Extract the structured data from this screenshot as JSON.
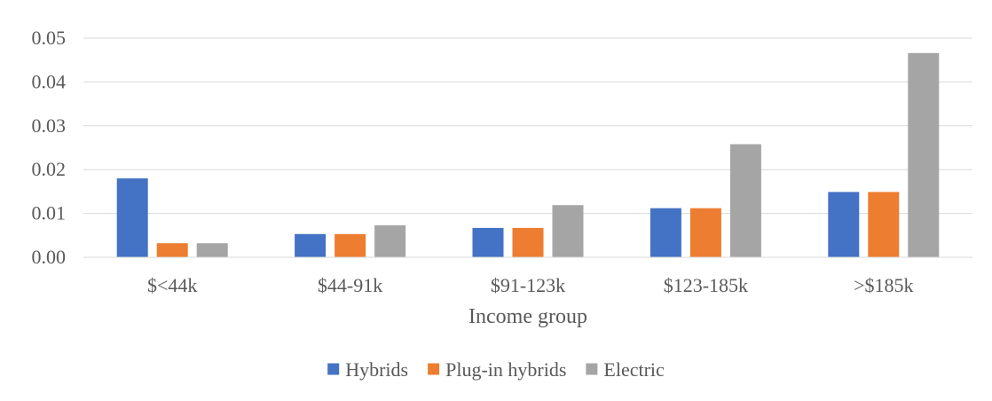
{
  "chart_data": {
    "type": "bar",
    "title": "",
    "xlabel": "Income group",
    "ylabel": "",
    "categories": [
      "$<44k",
      "$44-91k",
      "$91-123k",
      "$123-185k",
      ">$185k"
    ],
    "series": [
      {
        "name": "Hybrids",
        "color": "#4472C4",
        "values": [
          0.018,
          0.0053,
          0.0067,
          0.0112,
          0.0149
        ]
      },
      {
        "name": "Plug-in hybrids",
        "color": "#ED7D31",
        "values": [
          0.0032,
          0.0053,
          0.0067,
          0.0112,
          0.0149
        ]
      },
      {
        "name": "Electric",
        "color": "#A5A5A5",
        "values": [
          0.0032,
          0.0073,
          0.0119,
          0.0258,
          0.0466
        ]
      }
    ],
    "ylim": [
      0,
      0.05
    ],
    "yticks": [
      "0.00",
      "0.01",
      "0.02",
      "0.03",
      "0.04",
      "0.05"
    ],
    "grid": true,
    "legend_position": "bottom"
  },
  "colors": {
    "gridline": "#D9D9D9",
    "axis": "#D9D9D9",
    "text": "#595959"
  }
}
